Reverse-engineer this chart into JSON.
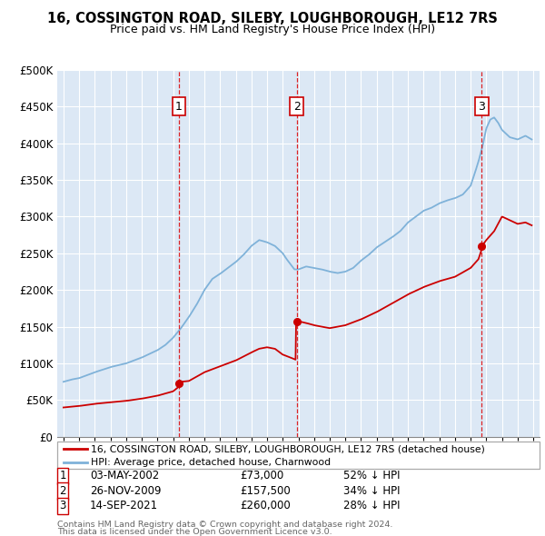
{
  "title": "16, COSSINGTON ROAD, SILEBY, LOUGHBOROUGH, LE12 7RS",
  "subtitle": "Price paid vs. HM Land Registry's House Price Index (HPI)",
  "background_color": "#ffffff",
  "plot_background": "#dce8f5",
  "grid_color": "#ffffff",
  "sale_color": "#cc0000",
  "hpi_color": "#7fb2d9",
  "ylim": [
    0,
    500000
  ],
  "yticks": [
    0,
    50000,
    100000,
    150000,
    200000,
    250000,
    300000,
    350000,
    400000,
    450000,
    500000
  ],
  "sale_labels": [
    {
      "num": "1",
      "date": "03-MAY-2002",
      "price": "£73,000",
      "pct": "52% ↓ HPI"
    },
    {
      "num": "2",
      "date": "26-NOV-2009",
      "price": "£157,500",
      "pct": "34% ↓ HPI"
    },
    {
      "num": "3",
      "date": "14-SEP-2021",
      "price": "£260,000",
      "pct": "28% ↓ HPI"
    }
  ],
  "legend_sale": "16, COSSINGTON ROAD, SILEBY, LOUGHBOROUGH, LE12 7RS (detached house)",
  "legend_hpi": "HPI: Average price, detached house, Charnwood",
  "footnote1": "Contains HM Land Registry data © Crown copyright and database right 2024.",
  "footnote2": "This data is licensed under the Open Government Licence v3.0.",
  "hpi_anchors_x": [
    1995.0,
    1995.5,
    1996.0,
    1997.0,
    1998.0,
    1999.0,
    2000.0,
    2001.0,
    2001.5,
    2002.0,
    2002.5,
    2003.0,
    2003.5,
    2004.0,
    2004.5,
    2005.0,
    2005.5,
    2006.0,
    2006.5,
    2007.0,
    2007.5,
    2008.0,
    2008.5,
    2009.0,
    2009.25,
    2009.5,
    2009.75,
    2010.0,
    2010.5,
    2011.0,
    2011.5,
    2012.0,
    2012.5,
    2013.0,
    2013.5,
    2014.0,
    2014.5,
    2015.0,
    2015.5,
    2016.0,
    2016.5,
    2017.0,
    2017.5,
    2018.0,
    2018.5,
    2019.0,
    2019.5,
    2020.0,
    2020.5,
    2021.0,
    2021.25,
    2021.5,
    2021.75,
    2022.0,
    2022.25,
    2022.5,
    2022.75,
    2023.0,
    2023.5,
    2024.0,
    2024.5,
    2024.9
  ],
  "hpi_anchors_y": [
    75000,
    78000,
    80000,
    88000,
    95000,
    100000,
    108000,
    118000,
    125000,
    135000,
    148000,
    163000,
    180000,
    200000,
    215000,
    222000,
    230000,
    238000,
    248000,
    260000,
    268000,
    265000,
    260000,
    250000,
    242000,
    235000,
    228000,
    228000,
    232000,
    230000,
    228000,
    225000,
    223000,
    225000,
    230000,
    240000,
    248000,
    258000,
    265000,
    272000,
    280000,
    292000,
    300000,
    308000,
    312000,
    318000,
    322000,
    325000,
    330000,
    342000,
    358000,
    375000,
    395000,
    420000,
    432000,
    435000,
    428000,
    418000,
    408000,
    405000,
    410000,
    405000
  ],
  "red_anchors_x": [
    1995.0,
    1996.0,
    1997.0,
    1998.0,
    1999.0,
    2000.0,
    2001.0,
    2002.0,
    2002.35,
    2002.37,
    2002.5,
    2003.0,
    2004.0,
    2005.0,
    2006.0,
    2007.0,
    2007.5,
    2008.0,
    2008.5,
    2009.0,
    2009.5,
    2009.83,
    2009.85,
    2009.9,
    2010.0,
    2010.5,
    2011.0,
    2011.5,
    2012.0,
    2013.0,
    2014.0,
    2015.0,
    2016.0,
    2017.0,
    2018.0,
    2019.0,
    2020.0,
    2021.0,
    2021.5,
    2021.7,
    2021.72,
    2022.0,
    2022.5,
    2023.0,
    2023.5,
    2024.0,
    2024.5,
    2024.9
  ],
  "red_anchors_y": [
    40000,
    42000,
    45000,
    47000,
    49000,
    52000,
    56000,
    62000,
    68000,
    73000,
    75000,
    76000,
    88000,
    96000,
    104000,
    115000,
    120000,
    122000,
    120000,
    112000,
    108000,
    105000,
    157500,
    158000,
    157500,
    155000,
    152000,
    150000,
    148000,
    152000,
    160000,
    170000,
    182000,
    194000,
    204000,
    212000,
    218000,
    230000,
    242000,
    255000,
    260000,
    268000,
    280000,
    300000,
    295000,
    290000,
    292000,
    288000
  ],
  "sale_events": [
    {
      "year": 2002.37,
      "price": 73000,
      "label": "1"
    },
    {
      "year": 2009.895,
      "price": 157500,
      "label": "2"
    },
    {
      "year": 2021.71,
      "price": 260000,
      "label": "3"
    }
  ]
}
